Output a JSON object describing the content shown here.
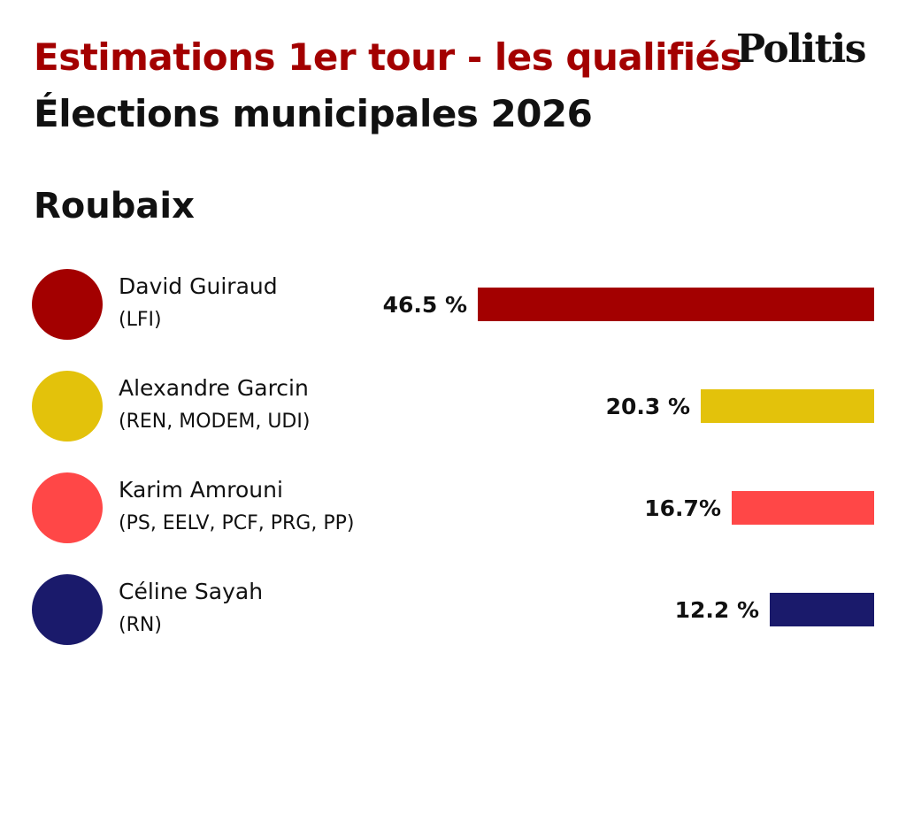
{
  "header": {
    "title": "Estimations 1er tour - les qualifiés",
    "subtitle": "Élections municipales 2026",
    "logo": "Politis"
  },
  "city": "Roubaix",
  "colors": {
    "title": "#a30000",
    "text": "#111111",
    "background": "#ffffff"
  },
  "chart_data": {
    "type": "bar",
    "orientation": "horizontal",
    "categories": [
      "David Guiraud",
      "Alexandre Garcin",
      "Karim Amrouni",
      "Céline Sayah"
    ],
    "parties": [
      "(LFI)",
      "(REN, MODEM, UDI)",
      "(PS, EELV, PCF, PRG, PP)",
      "(RN)"
    ],
    "values": [
      46.5,
      20.3,
      16.7,
      12.2
    ],
    "value_labels": [
      "46.5 %",
      "20.3 %",
      "16.7%",
      "12.2 %"
    ],
    "colors": [
      "#a30000",
      "#e3c20b",
      "#ff4747",
      "#1a1a6b"
    ],
    "xlim": [
      0,
      46.5
    ],
    "grid": false,
    "legend": "none"
  }
}
